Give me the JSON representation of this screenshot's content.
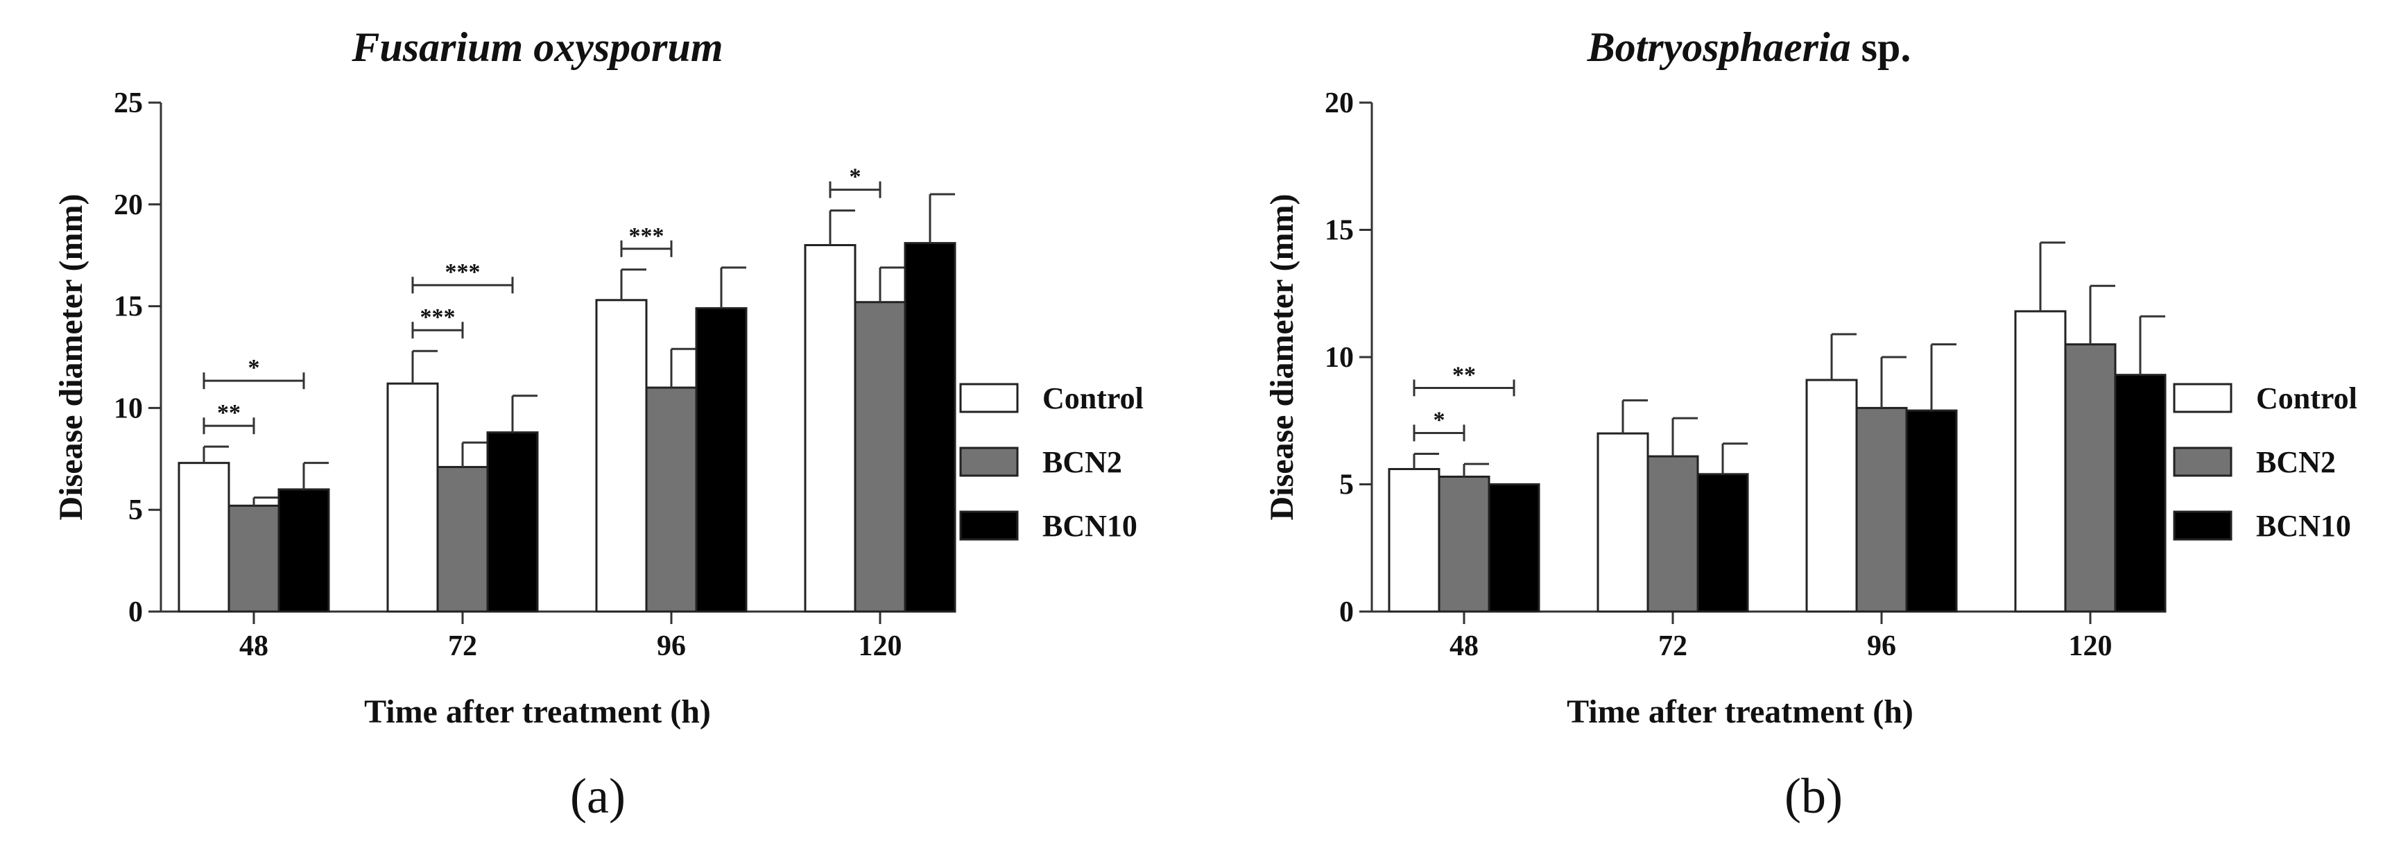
{
  "chart_data": [
    {
      "type": "bar",
      "panel_label": "(a)",
      "title": "Fusarium oxysporum",
      "title_suffix": "",
      "xlabel": "Time  after treatment (h)",
      "ylabel": "Disease diameter (mm)",
      "ylim": [
        0,
        25
      ],
      "yticks": [
        0,
        5,
        10,
        15,
        20,
        25
      ],
      "categories": [
        "48",
        "72",
        "96",
        "120"
      ],
      "legend_position": "right",
      "series": [
        {
          "name": "Control",
          "color": "#ffffff",
          "values": [
            7.3,
            11.2,
            15.3,
            18.0
          ],
          "errors": [
            0.8,
            1.6,
            1.5,
            1.7
          ]
        },
        {
          "name": "BCN2",
          "color": "#737373",
          "values": [
            5.2,
            7.1,
            11.0,
            15.2
          ],
          "errors": [
            0.4,
            1.2,
            1.9,
            1.7
          ]
        },
        {
          "name": "BCN10",
          "color": "#000000",
          "values": [
            6.0,
            8.8,
            14.9,
            18.1
          ],
          "errors": [
            1.3,
            1.8,
            2.0,
            2.4
          ]
        }
      ],
      "significance": [
        {
          "category": "48",
          "from": "Control",
          "to": "BCN2",
          "label": "**",
          "level": 1
        },
        {
          "category": "48",
          "from": "Control",
          "to": "BCN10",
          "label": "*",
          "level": 2
        },
        {
          "category": "72",
          "from": "Control",
          "to": "BCN2",
          "label": "***",
          "level": 1
        },
        {
          "category": "72",
          "from": "Control",
          "to": "BCN10",
          "label": "***",
          "level": 2
        },
        {
          "category": "96",
          "from": "Control",
          "to": "BCN2",
          "label": "***",
          "level": 1
        },
        {
          "category": "120",
          "from": "Control",
          "to": "BCN2",
          "label": "*",
          "level": 1
        }
      ]
    },
    {
      "type": "bar",
      "panel_label": "(b)",
      "title": "Botryosphaeria",
      "title_suffix": " sp.",
      "xlabel": "Time  after treatment (h)",
      "ylabel": "Disease diameter (mm)",
      "ylim": [
        0,
        20
      ],
      "yticks": [
        0,
        5,
        10,
        15,
        20
      ],
      "categories": [
        "48",
        "72",
        "96",
        "120"
      ],
      "legend_position": "right",
      "series": [
        {
          "name": "Control",
          "color": "#ffffff",
          "values": [
            5.6,
            7.0,
            9.1,
            11.8
          ],
          "errors": [
            0.6,
            1.3,
            1.8,
            2.7
          ]
        },
        {
          "name": "BCN2",
          "color": "#737373",
          "values": [
            5.3,
            6.1,
            8.0,
            10.5
          ],
          "errors": [
            0.5,
            1.5,
            2.0,
            2.3
          ]
        },
        {
          "name": "BCN10",
          "color": "#000000",
          "values": [
            5.0,
            5.4,
            7.9,
            9.3
          ],
          "errors": [
            0.0,
            1.2,
            2.6,
            2.3
          ]
        }
      ],
      "significance": [
        {
          "category": "48",
          "from": "Control",
          "to": "BCN2",
          "label": "*",
          "level": 1
        },
        {
          "category": "48",
          "from": "Control",
          "to": "BCN10",
          "label": "**",
          "level": 2
        }
      ]
    }
  ]
}
